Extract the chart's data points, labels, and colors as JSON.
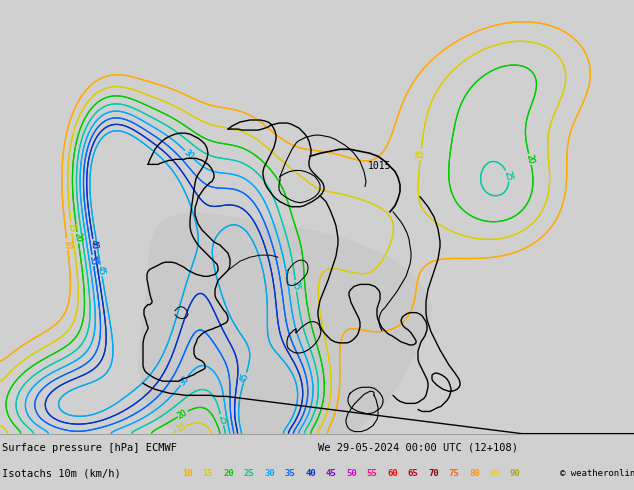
{
  "title_line1": "Surface pressure [hPa] ECMWF",
  "title_line2": "We 29-05-2024 00:00 UTC (12+108)",
  "legend_label": "Isotachs 10m (km/h)",
  "copyright": "© weatheronline.co.uk",
  "land_color": "#ccffaa",
  "sea_color": "#d8d8d8",
  "footer_bg": "#d0d0d0",
  "legend_values": [
    10,
    15,
    20,
    25,
    30,
    35,
    40,
    45,
    50,
    55,
    60,
    65,
    70,
    75,
    80,
    85,
    90
  ],
  "legend_colors": [
    "#ffaa00",
    "#ddcc00",
    "#00cc00",
    "#00cc88",
    "#00aaff",
    "#0066ff",
    "#0033cc",
    "#8800cc",
    "#cc00cc",
    "#ff0088",
    "#ff0000",
    "#cc0000",
    "#880000",
    "#ff6600",
    "#ff9900",
    "#ffcc00",
    "#aaaa00"
  ],
  "figsize": [
    6.34,
    4.9
  ],
  "dpi": 100
}
